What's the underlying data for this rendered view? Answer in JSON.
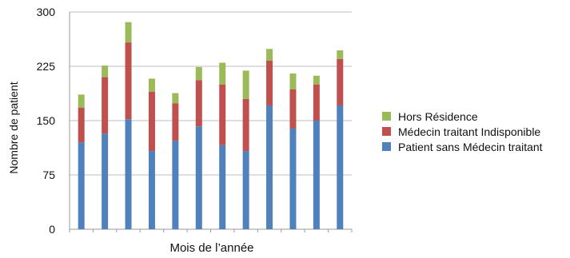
{
  "chart_data": {
    "type": "bar",
    "stacked": true,
    "categories": [
      "",
      "",
      "",
      "",
      "",
      "",
      "",
      "",
      "",
      "",
      "",
      ""
    ],
    "series": [
      {
        "name": "Patient sans Médecin traitant",
        "color": "#4f81bd",
        "values": [
          120,
          132,
          152,
          108,
          122,
          142,
          116,
          108,
          171,
          139,
          150,
          171
        ]
      },
      {
        "name": "Médecin traitant Indisponible",
        "color": "#c0504d",
        "values": [
          48,
          78,
          106,
          82,
          52,
          64,
          84,
          72,
          62,
          54,
          50,
          64
        ]
      },
      {
        "name": "Hors Résidence",
        "color": "#9bbb59",
        "values": [
          18,
          16,
          28,
          18,
          14,
          18,
          30,
          39,
          16,
          22,
          12,
          12
        ]
      }
    ],
    "xlabel": "Mois de l’année",
    "ylabel": "Nombre de patient",
    "ylim": [
      0,
      300
    ],
    "yticks": [
      0,
      75,
      150,
      225,
      300
    ],
    "grid": true,
    "legend_position": "right"
  }
}
